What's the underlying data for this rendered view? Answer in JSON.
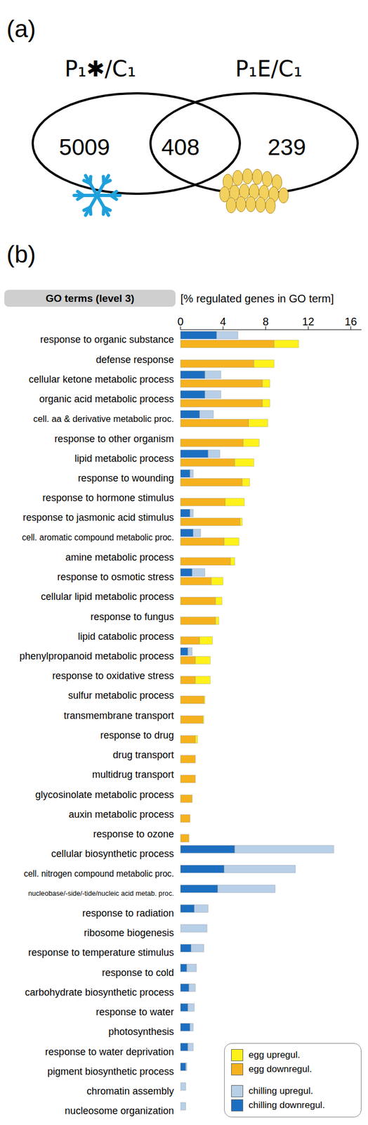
{
  "venn": {
    "panel_label": "(a)",
    "sets": [
      "P₁✱/C₁",
      "P₁E/C₁"
    ],
    "counts": {
      "only_first": 5009,
      "both": 408,
      "only_second": 239
    }
  },
  "chart_data": {
    "panel_label": "(b)",
    "type": "bar",
    "orientation": "horizontal",
    "stacked": true,
    "title": "GO terms (level 3)",
    "x_label": "[% regulated genes in GO term]",
    "categories": [
      "response to organic substance",
      "defense response",
      "cellular ketone metabolic process",
      "organic acid metabolic process",
      "cell. aa & derivative metabolic proc.",
      "response to other organism",
      "lipid metabolic process",
      "response to wounding",
      "response to hormone stimulus",
      "response to jasmonic acid stimulus",
      "cell. aromatic compound metabolic proc.",
      "amine metabolic process",
      "response to osmotic stress",
      "cellular lipid metabolic process",
      "response to fungus",
      "lipid catabolic process",
      "phenylpropanoid metabolic process",
      "response to oxidative stress",
      "sulfur metabolic process",
      "transmembrane transport",
      "response to drug",
      "drug transport",
      "multidrug transport",
      "glycosinolate metabolic process",
      "auxin metabolic process",
      "response to ozone",
      "cellular biosynthetic process",
      "cell. nitrogen compound metabolic proc.",
      "nucleobase/-side/-tide/nucleic acid metab. proc.",
      "response to radiation",
      "ribosome biogenesis",
      "response to temperature stimulus",
      "response to cold",
      "carbohydrate biosynthetic process",
      "response to water",
      "photosynthesis",
      "response to water deprivation",
      "pigment biosynthetic process",
      "chromatin assembly",
      "nucleosome organization"
    ],
    "series": [
      {
        "name": "chilling downregul.",
        "color": "#1c6fc0",
        "values": [
          3.4,
          0,
          2.3,
          2.3,
          1.8,
          0,
          2.6,
          0.9,
          0,
          0.9,
          1.2,
          0,
          1.1,
          0,
          0,
          0,
          0.7,
          0,
          0,
          0,
          0,
          0,
          0,
          0,
          0,
          0,
          5.1,
          4.1,
          3.5,
          1.3,
          0,
          1.0,
          0.6,
          0.8,
          0.7,
          0.9,
          0.7,
          0.5,
          0,
          0
        ]
      },
      {
        "name": "chilling upregul.",
        "color": "#b8cfe8",
        "values": [
          2.0,
          0,
          1.5,
          1.5,
          1.3,
          0,
          1.1,
          0.3,
          0,
          0.3,
          0.7,
          0,
          1.2,
          0,
          0,
          0,
          0.4,
          0,
          0,
          0,
          0,
          0,
          0,
          0,
          0,
          0,
          9.3,
          6.7,
          5.4,
          1.3,
          2.5,
          1.2,
          0.9,
          0.6,
          0.6,
          0.3,
          0.5,
          0.1,
          0.5,
          0.5
        ]
      },
      {
        "name": "egg downregul.",
        "color": "#f5b21e",
        "values": [
          8.8,
          6.9,
          7.7,
          7.7,
          6.4,
          5.9,
          5.1,
          5.8,
          4.2,
          5.6,
          4.1,
          4.7,
          2.9,
          3.3,
          3.3,
          1.8,
          1.4,
          1.4,
          2.2,
          2.1,
          1.4,
          1.4,
          1.4,
          1.1,
          0.9,
          0.8,
          0,
          0,
          0,
          0,
          0,
          0,
          0,
          0,
          0,
          0,
          0,
          0,
          0,
          0
        ]
      },
      {
        "name": "egg upregul.",
        "color": "#fff21a",
        "values": [
          2.3,
          1.9,
          0.7,
          0.7,
          1.8,
          1.5,
          1.8,
          0.7,
          1.8,
          0.2,
          1.4,
          0.4,
          1.1,
          0.6,
          0.3,
          1.2,
          1.4,
          1.4,
          0.1,
          0.1,
          0.2,
          0,
          0,
          0,
          0,
          0,
          0,
          0,
          0,
          0,
          0,
          0,
          0,
          0,
          0,
          0,
          0,
          0,
          0,
          0
        ]
      }
    ],
    "xlim": [
      0,
      17
    ],
    "xticks": [
      0,
      4,
      8,
      12,
      16
    ],
    "grid": false,
    "legend": "lower right"
  }
}
